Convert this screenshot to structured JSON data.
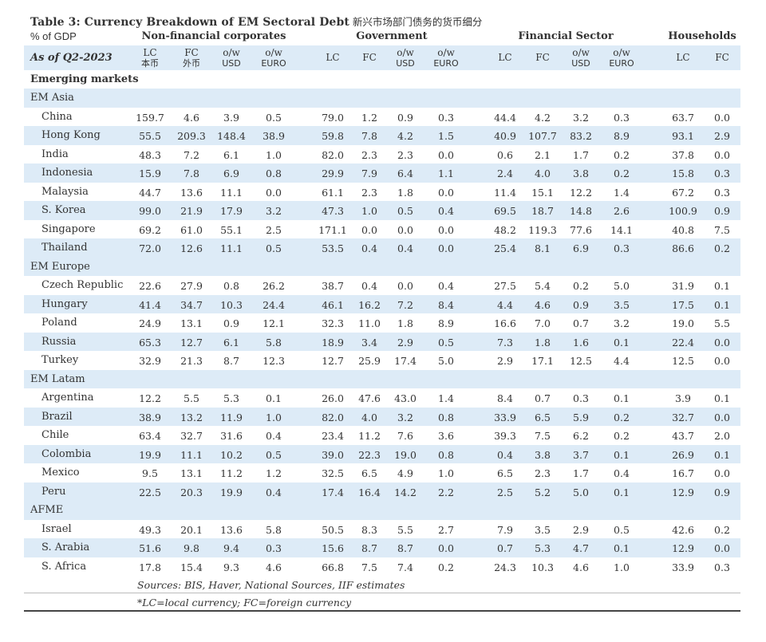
{
  "title": {
    "en": "Table 3:  Currency Breakdown of EM Sectoral Debt",
    "cn": "新兴市场部门债务的货币细分"
  },
  "unit_label": "% of GDP",
  "as_of": "As of Q2-2023",
  "groups": [
    "Non-financial corporates",
    "Government",
    "Financial Sector",
    "Households"
  ],
  "columns": [
    {
      "top": "LC",
      "sub": "本币"
    },
    {
      "top": "FC",
      "sub": "外币"
    },
    {
      "top": "o/w",
      "sub": "USD"
    },
    {
      "top": "o/w",
      "sub": "EURO"
    },
    {
      "top": "LC",
      "sub": ""
    },
    {
      "top": "FC",
      "sub": ""
    },
    {
      "top": "o/w",
      "sub": "USD"
    },
    {
      "top": "o/w",
      "sub": "EURO"
    },
    {
      "top": "LC",
      "sub": ""
    },
    {
      "top": "FC",
      "sub": ""
    },
    {
      "top": "o/w",
      "sub": "USD"
    },
    {
      "top": "o/w",
      "sub": "EURO"
    },
    {
      "top": "LC",
      "sub": ""
    },
    {
      "top": "FC",
      "sub": ""
    }
  ],
  "emerging_markets_label": "Emerging markets",
  "sections": [
    {
      "name": "EM Asia",
      "rows": [
        {
          "country": "China",
          "values": [
            "159.7",
            "4.6",
            "3.9",
            "0.5",
            "79.0",
            "1.2",
            "0.9",
            "0.3",
            "44.4",
            "4.2",
            "3.2",
            "0.3",
            "63.7",
            "0.0"
          ]
        },
        {
          "country": "Hong Kong",
          "values": [
            "55.5",
            "209.3",
            "148.4",
            "38.9",
            "59.8",
            "7.8",
            "4.2",
            "1.5",
            "40.9",
            "107.7",
            "83.2",
            "8.9",
            "93.1",
            "2.9"
          ]
        },
        {
          "country": "India",
          "values": [
            "48.3",
            "7.2",
            "6.1",
            "1.0",
            "82.0",
            "2.3",
            "2.3",
            "0.0",
            "0.6",
            "2.1",
            "1.7",
            "0.2",
            "37.8",
            "0.0"
          ]
        },
        {
          "country": "Indonesia",
          "values": [
            "15.9",
            "7.8",
            "6.9",
            "0.8",
            "29.9",
            "7.9",
            "6.4",
            "1.1",
            "2.4",
            "4.0",
            "3.8",
            "0.2",
            "15.8",
            "0.3"
          ]
        },
        {
          "country": "Malaysia",
          "values": [
            "44.7",
            "13.6",
            "11.1",
            "0.0",
            "61.1",
            "2.3",
            "1.8",
            "0.0",
            "11.4",
            "15.1",
            "12.2",
            "1.4",
            "67.2",
            "0.3"
          ]
        },
        {
          "country": "S. Korea",
          "values": [
            "99.0",
            "21.9",
            "17.9",
            "3.2",
            "47.3",
            "1.0",
            "0.5",
            "0.4",
            "69.5",
            "18.7",
            "14.8",
            "2.6",
            "100.9",
            "0.9"
          ]
        },
        {
          "country": "Singapore",
          "values": [
            "69.2",
            "61.0",
            "55.1",
            "2.5",
            "171.1",
            "0.0",
            "0.0",
            "0.0",
            "48.2",
            "119.3",
            "77.6",
            "14.1",
            "40.8",
            "7.5"
          ]
        },
        {
          "country": " Thailand",
          "values": [
            "72.0",
            "12.6",
            "11.1",
            "0.5",
            "53.5",
            "0.4",
            "0.4",
            "0.0",
            "25.4",
            "8.1",
            "6.9",
            "0.3",
            "86.6",
            "0.2"
          ]
        }
      ]
    },
    {
      "name": "EM Europe",
      "rows": [
        {
          "country": "Czech Republic",
          "values": [
            "22.6",
            "27.9",
            "0.8",
            "26.2",
            "38.7",
            "0.4",
            "0.0",
            "0.4",
            "27.5",
            "5.4",
            "0.2",
            "5.0",
            "31.9",
            "0.1"
          ]
        },
        {
          "country": "Hungary",
          "values": [
            "41.4",
            "34.7",
            "10.3",
            "24.4",
            "46.1",
            "16.2",
            "7.2",
            "8.4",
            "4.4",
            "4.6",
            "0.9",
            "3.5",
            "17.5",
            "0.1"
          ]
        },
        {
          "country": "Poland",
          "values": [
            "24.9",
            "13.1",
            "0.9",
            "12.1",
            "32.3",
            "11.0",
            "1.8",
            "8.9",
            "16.6",
            "7.0",
            "0.7",
            "3.2",
            "19.0",
            "5.5"
          ]
        },
        {
          "country": "Russia",
          "values": [
            "65.3",
            "12.7",
            "6.1",
            "5.8",
            "18.9",
            "3.4",
            "2.9",
            "0.5",
            "7.3",
            "1.8",
            "1.6",
            "0.1",
            "22.4",
            "0.0"
          ]
        },
        {
          "country": "Turkey",
          "values": [
            "32.9",
            "21.3",
            "8.7",
            "12.3",
            "12.7",
            "25.9",
            "17.4",
            "5.0",
            "2.9",
            "17.1",
            "12.5",
            "4.4",
            "12.5",
            "0.0"
          ]
        }
      ]
    },
    {
      "name": "EM Latam",
      "rows": [
        {
          "country": "Argentina",
          "values": [
            "12.2",
            "5.5",
            "5.3",
            "0.1",
            "26.0",
            "47.6",
            "43.0",
            "1.4",
            "8.4",
            "0.7",
            "0.3",
            "0.1",
            "3.9",
            "0.1"
          ]
        },
        {
          "country": "Brazil",
          "values": [
            "38.9",
            "13.2",
            "11.9",
            "1.0",
            "82.0",
            "4.0",
            "3.2",
            "0.8",
            "33.9",
            "6.5",
            "5.9",
            "0.2",
            "32.7",
            "0.0"
          ]
        },
        {
          "country": "Chile",
          "values": [
            "63.4",
            "32.7",
            "31.6",
            "0.4",
            "23.4",
            "11.2",
            "7.6",
            "3.6",
            "39.3",
            "7.5",
            "6.2",
            "0.2",
            "43.7",
            "2.0"
          ]
        },
        {
          "country": "Colombia",
          "values": [
            "19.9",
            "11.1",
            "10.2",
            "0.5",
            "39.0",
            "22.3",
            "19.0",
            "0.8",
            "0.4",
            "3.8",
            "3.7",
            "0.1",
            "26.9",
            "0.1"
          ]
        },
        {
          "country": "Mexico",
          "values": [
            "9.5",
            "13.1",
            "11.2",
            "1.2",
            "32.5",
            "6.5",
            "4.9",
            "1.0",
            "6.5",
            "2.3",
            "1.7",
            "0.4",
            "16.7",
            "0.0"
          ]
        },
        {
          "country": "Peru",
          "values": [
            "22.5",
            "20.3",
            "19.9",
            "0.4",
            "17.4",
            "16.4",
            "14.2",
            "2.2",
            "2.5",
            "5.2",
            "5.0",
            "0.1",
            "12.9",
            "0.9"
          ]
        }
      ]
    },
    {
      "name": "AFME",
      "rows": [
        {
          "country": "Israel",
          "values": [
            "49.3",
            "20.1",
            "13.6",
            "5.8",
            "50.5",
            "8.3",
            "5.5",
            "2.7",
            "7.9",
            "3.5",
            "2.9",
            "0.5",
            "42.6",
            "0.2"
          ]
        },
        {
          "country": "S. Arabia",
          "values": [
            "51.6",
            "9.8",
            "9.4",
            "0.3",
            "15.6",
            "8.7",
            "8.7",
            "0.0",
            "0.7",
            "5.3",
            "4.7",
            "0.1",
            "12.9",
            "0.0"
          ]
        },
        {
          "country": "S. Africa",
          "values": [
            "17.8",
            "15.4",
            "9.3",
            "4.6",
            "66.8",
            "7.5",
            "7.4",
            "0.2",
            "24.3",
            "10.3",
            "4.6",
            "1.0",
            "33.9",
            "0.3"
          ]
        }
      ]
    }
  ],
  "footnotes": {
    "sources": "Sources: BIS, Haver, National Sources, IIF estimates",
    "note": "*LC=local currency; FC=foreign currency"
  }
}
